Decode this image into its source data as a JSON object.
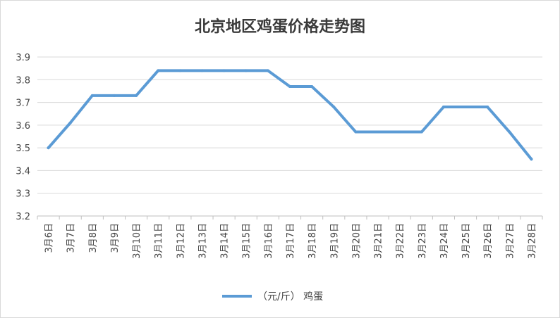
{
  "chart_data": {
    "type": "line",
    "title": "北京地区鸡蛋价格走势图",
    "xlabel": "",
    "ylabel": "",
    "categories": [
      "3月6日",
      "3月7日",
      "3月8日",
      "3月9日",
      "3月10日",
      "3月11日",
      "3月12日",
      "3月13日",
      "3月14日",
      "3月15日",
      "3月16日",
      "3月17日",
      "3月18日",
      "3月19日",
      "3月20日",
      "3月21日",
      "3月22日",
      "3月23日",
      "3月24日",
      "3月25日",
      "3月26日",
      "3月27日",
      "3月28日"
    ],
    "series": [
      {
        "name": "（元/斤） 鸡蛋",
        "color": "#5b9bd5",
        "values": [
          3.5,
          3.61,
          3.73,
          3.73,
          3.73,
          3.84,
          3.84,
          3.84,
          3.84,
          3.84,
          3.84,
          3.77,
          3.77,
          3.68,
          3.57,
          3.57,
          3.57,
          3.57,
          3.68,
          3.68,
          3.68,
          3.57,
          3.45
        ]
      }
    ],
    "ylim": [
      3.2,
      3.9
    ],
    "yticks": [
      "3.2",
      "3.3",
      "3.4",
      "3.5",
      "3.6",
      "3.7",
      "3.8",
      "3.9"
    ],
    "grid": true,
    "legend_position": "bottom"
  }
}
